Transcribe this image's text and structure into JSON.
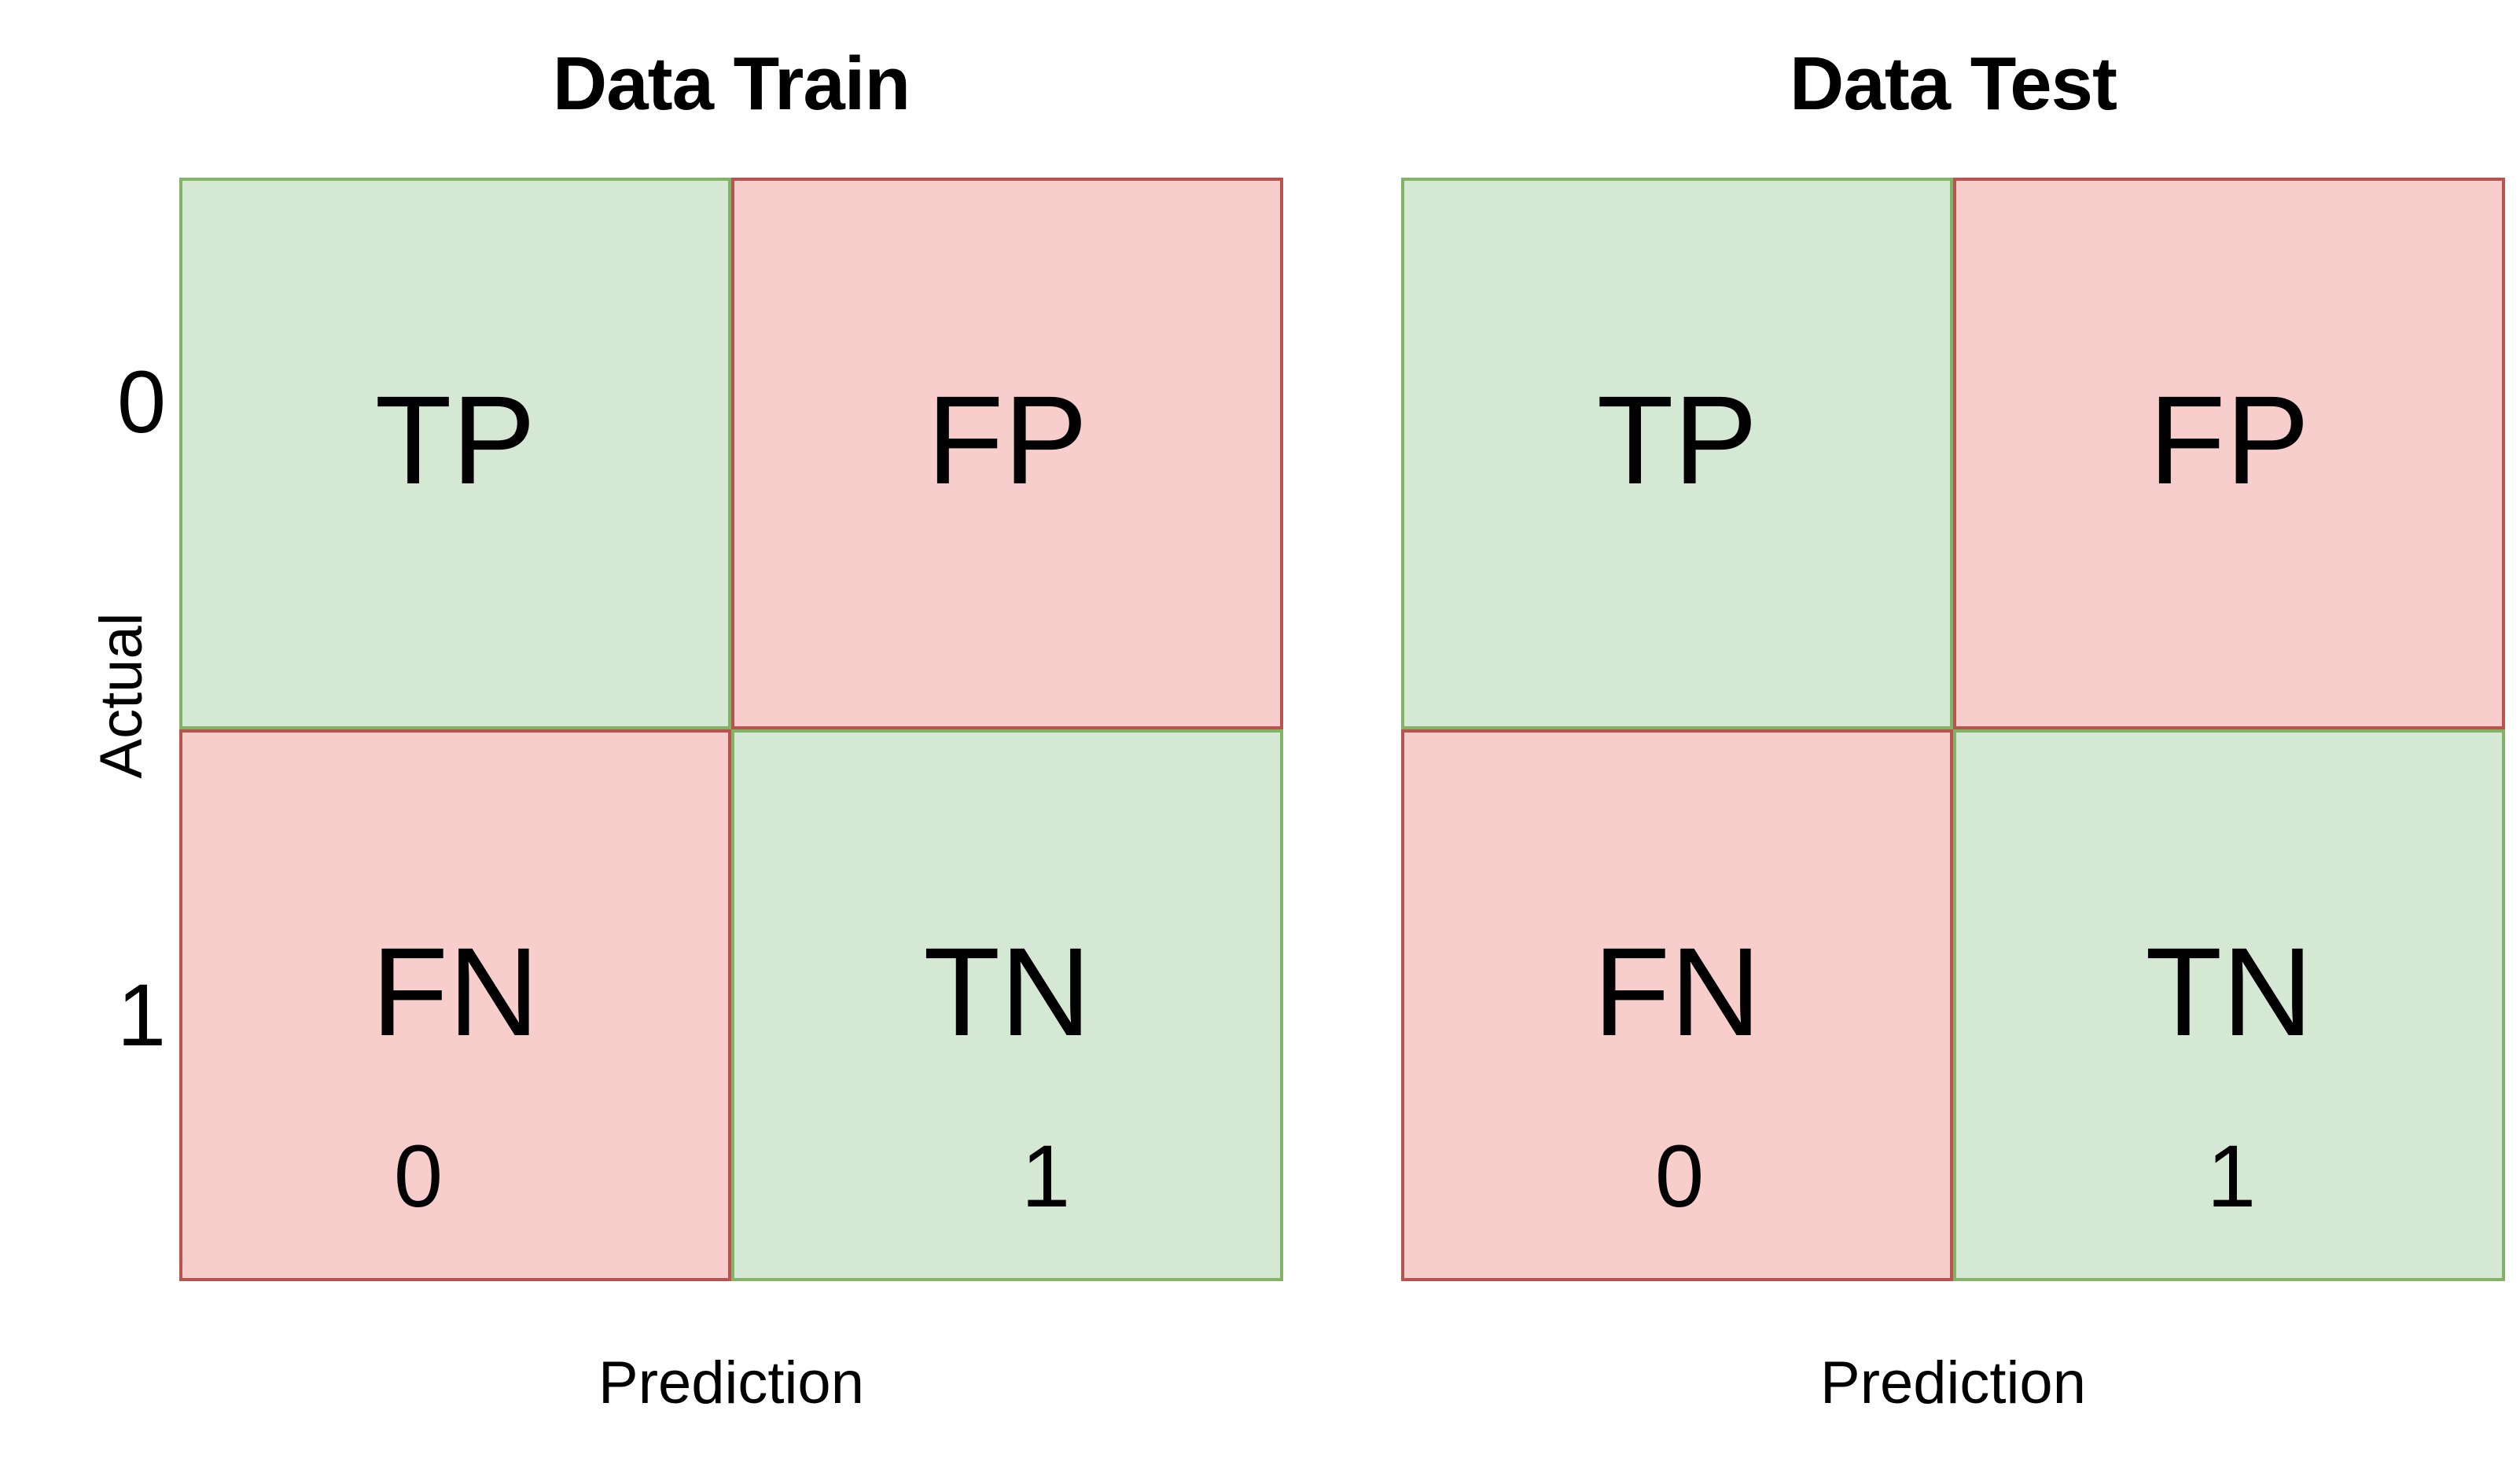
{
  "train": {
    "title": "Data Train",
    "y_axis_label": "Actual",
    "x_axis_label": "Prediction",
    "row_ticks": [
      "0",
      "1"
    ],
    "col_ticks": [
      "0",
      "1"
    ],
    "cells": {
      "tp": "TP",
      "fp": "FP",
      "fn": "FN",
      "tn": "TN"
    }
  },
  "test": {
    "title": "Data Test",
    "x_axis_label": "Prediction",
    "col_ticks": [
      "0",
      "1"
    ],
    "cells": {
      "tp": "TP",
      "fp": "FP",
      "fn": "FN",
      "tn": "TN"
    }
  },
  "colors": {
    "correct_fill": "#d5e8d4",
    "correct_border": "#82b366",
    "error_fill": "#f8cecc",
    "error_border": "#b85450"
  }
}
